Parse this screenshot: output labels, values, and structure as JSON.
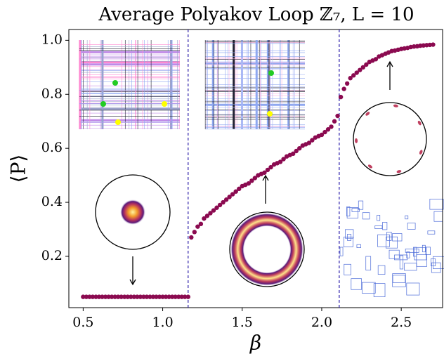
{
  "chart_data": {
    "type": "scatter",
    "title": "Average Polyakov Loop ℤ₇, L = 10",
    "xlabel": "β",
    "ylabel": "⟨P⟩",
    "color": "#8b0a50",
    "xlim": [
      0.41,
      2.76
    ],
    "ylim": [
      0.01,
      1.04
    ],
    "xticks": [
      0.5,
      {
        "value": 1.0,
        "label": "1.0"
      },
      1.5,
      {
        "value": 2.0,
        "label": "2.0"
      },
      2.5
    ],
    "yticks": [
      0.2,
      0.4,
      0.6,
      0.8,
      {
        "value": 1.0,
        "label": "1.0"
      }
    ],
    "vlines": [
      1.16,
      2.11
    ],
    "x": [
      0.5,
      0.52,
      0.54,
      0.56,
      0.58,
      0.6,
      0.62,
      0.64,
      0.66,
      0.68,
      0.7,
      0.72,
      0.74,
      0.76,
      0.78,
      0.8,
      0.82,
      0.84,
      0.86,
      0.88,
      0.9,
      0.92,
      0.94,
      0.96,
      0.98,
      1.0,
      1.02,
      1.04,
      1.06,
      1.08,
      1.1,
      1.12,
      1.14,
      1.16,
      1.18,
      1.2,
      1.22,
      1.24,
      1.26,
      1.28,
      1.3,
      1.32,
      1.34,
      1.36,
      1.38,
      1.4,
      1.42,
      1.44,
      1.46,
      1.48,
      1.5,
      1.52,
      1.54,
      1.56,
      1.58,
      1.6,
      1.62,
      1.64,
      1.66,
      1.68,
      1.7,
      1.72,
      1.74,
      1.76,
      1.78,
      1.8,
      1.82,
      1.84,
      1.86,
      1.88,
      1.9,
      1.92,
      1.94,
      1.96,
      1.98,
      2.0,
      2.02,
      2.04,
      2.06,
      2.08,
      2.1,
      2.12,
      2.14,
      2.16,
      2.18,
      2.2,
      2.22,
      2.24,
      2.26,
      2.28,
      2.3,
      2.32,
      2.34,
      2.36,
      2.38,
      2.4,
      2.42,
      2.44,
      2.46,
      2.48,
      2.5,
      2.52,
      2.54,
      2.56,
      2.58,
      2.6,
      2.62,
      2.64,
      2.66,
      2.68,
      2.7
    ],
    "values": [
      0.05,
      0.05,
      0.05,
      0.05,
      0.05,
      0.05,
      0.05,
      0.05,
      0.05,
      0.05,
      0.05,
      0.05,
      0.05,
      0.05,
      0.05,
      0.05,
      0.05,
      0.05,
      0.05,
      0.05,
      0.05,
      0.05,
      0.05,
      0.05,
      0.05,
      0.05,
      0.05,
      0.05,
      0.05,
      0.05,
      0.05,
      0.05,
      0.05,
      0.05,
      0.27,
      0.29,
      0.31,
      0.32,
      0.34,
      0.35,
      0.36,
      0.37,
      0.38,
      0.39,
      0.4,
      0.41,
      0.42,
      0.43,
      0.44,
      0.45,
      0.46,
      0.465,
      0.47,
      0.48,
      0.49,
      0.5,
      0.505,
      0.51,
      0.52,
      0.53,
      0.54,
      0.545,
      0.55,
      0.56,
      0.57,
      0.575,
      0.58,
      0.59,
      0.6,
      0.61,
      0.615,
      0.62,
      0.63,
      0.64,
      0.645,
      0.65,
      0.66,
      0.67,
      0.68,
      0.7,
      0.72,
      0.79,
      0.82,
      0.84,
      0.86,
      0.87,
      0.88,
      0.89,
      0.9,
      0.91,
      0.92,
      0.925,
      0.93,
      0.94,
      0.945,
      0.95,
      0.955,
      0.96,
      0.962,
      0.965,
      0.968,
      0.97,
      0.972,
      0.975,
      0.977,
      0.978,
      0.98,
      0.981,
      0.982,
      0.983,
      0.984
    ]
  }
}
